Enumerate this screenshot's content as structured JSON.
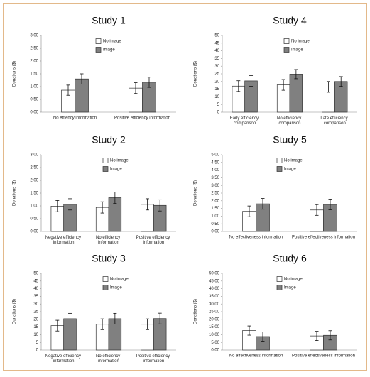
{
  "chart_data": [
    {
      "type": "bar",
      "title": "Study 1",
      "ylabel": "Donations ($)",
      "categories": [
        "No effiency information",
        "Positive efficiency information"
      ],
      "series": [
        {
          "name": "No image",
          "color": "#ffffff",
          "values": [
            0.86,
            0.94
          ],
          "errors": [
            0.2,
            0.21
          ]
        },
        {
          "name": "Image",
          "color": "#808080",
          "values": [
            1.3,
            1.17
          ],
          "errors": [
            0.2,
            0.2
          ]
        }
      ],
      "ylim": [
        0,
        3
      ],
      "yticks": [
        {
          "value": 0,
          "label": "0.00"
        },
        {
          "value": 0.5,
          "label": "0.50"
        },
        {
          "value": 1,
          "label": "1.00"
        },
        {
          "value": 1.5,
          "label": "1.50"
        },
        {
          "value": 2,
          "label": "2.00"
        },
        {
          "value": 2.5,
          "label": "2.50"
        },
        {
          "value": 3,
          "label": "3.00"
        }
      ]
    },
    {
      "type": "bar",
      "title": "Study 4",
      "ylabel": "Donations ($)",
      "categories": [
        "Early efficiency comparison",
        "No efficiency comparison",
        "Late efficiency comparison"
      ],
      "series": [
        {
          "name": "No image",
          "color": "#ffffff",
          "values": [
            17,
            17.8,
            16.5
          ],
          "errors": [
            3.5,
            3.5,
            3.5
          ]
        },
        {
          "name": "Image",
          "color": "#808080",
          "values": [
            20.4,
            24.8,
            20
          ],
          "errors": [
            3.5,
            3,
            3.2
          ]
        }
      ],
      "ylim": [
        0,
        50
      ],
      "yticks": [
        0,
        5,
        10,
        15,
        20,
        25,
        30,
        35,
        40,
        45,
        50
      ]
    },
    {
      "type": "bar",
      "title": "Study 2",
      "ylabel": "Donations ($)",
      "categories": [
        "Negative efficiency information",
        "No efficiency information",
        "Positive efficiency information"
      ],
      "series": [
        {
          "name": "No image",
          "color": "#ffffff",
          "values": [
            0.99,
            0.94,
            1.06
          ],
          "errors": [
            0.22,
            0.22,
            0.22
          ]
        },
        {
          "name": "Image",
          "color": "#808080",
          "values": [
            1.06,
            1.32,
            1.02
          ],
          "errors": [
            0.22,
            0.22,
            0.22
          ]
        }
      ],
      "ylim": [
        0,
        3
      ],
      "yticks": [
        {
          "value": 0,
          "label": "0.00"
        },
        {
          "value": 0.5,
          "label": "0.50"
        },
        {
          "value": 1,
          "label": "1.00"
        },
        {
          "value": 1.5,
          "label": "1.50"
        },
        {
          "value": 2,
          "label": "2.00"
        },
        {
          "value": 2.5,
          "label": "2.50"
        },
        {
          "value": 3,
          "label": "3.00"
        }
      ]
    },
    {
      "type": "bar",
      "title": "Study 5",
      "ylabel": "Donations ($)",
      "categories": [
        "No effectiveness information",
        "Positive effectiveness information"
      ],
      "series": [
        {
          "name": "No image",
          "color": "#ffffff",
          "values": [
            1.31,
            1.4
          ],
          "errors": [
            0.35,
            0.35
          ]
        },
        {
          "name": "Image",
          "color": "#808080",
          "values": [
            1.8,
            1.76
          ],
          "errors": [
            0.35,
            0.35
          ]
        }
      ],
      "ylim": [
        0,
        5
      ],
      "yticks": [
        {
          "value": 0,
          "label": "0.00"
        },
        {
          "value": 0.5,
          "label": "0.50"
        },
        {
          "value": 1,
          "label": "1.00"
        },
        {
          "value": 1.5,
          "label": "1.50"
        },
        {
          "value": 2,
          "label": "2.00"
        },
        {
          "value": 2.5,
          "label": "2.50"
        },
        {
          "value": 3,
          "label": "3.00"
        },
        {
          "value": 3.5,
          "label": "3.50"
        },
        {
          "value": 4,
          "label": "4.00"
        },
        {
          "value": 4.5,
          "label": "4.50"
        },
        {
          "value": 5,
          "label": "5.00"
        }
      ]
    },
    {
      "type": "bar",
      "title": "Study 3",
      "ylabel": "Donations ($)",
      "categories": [
        "Negative efficiency information",
        "No efficiency information",
        "Positive efficiency information"
      ],
      "series": [
        {
          "name": "No image",
          "color": "#ffffff",
          "values": [
            15.9,
            16.8,
            16.8
          ],
          "errors": [
            3.5,
            3.5,
            3.5
          ]
        },
        {
          "name": "Image",
          "color": "#808080",
          "values": [
            20.4,
            20.4,
            20.5
          ],
          "errors": [
            3.5,
            3.5,
            3.5
          ]
        }
      ],
      "ylim": [
        0,
        50
      ],
      "yticks": [
        0,
        5,
        10,
        15,
        20,
        25,
        30,
        35,
        40,
        45,
        50
      ]
    },
    {
      "type": "bar",
      "title": "Study 6",
      "ylabel": "Donations ($)",
      "categories": [
        "No effectiveness information",
        "Positive effectiveness information"
      ],
      "series": [
        {
          "name": "No image",
          "color": "#ffffff",
          "values": [
            12.7,
            9.2
          ],
          "errors": [
            3,
            3
          ]
        },
        {
          "name": "Image",
          "color": "#808080",
          "values": [
            8.8,
            9.6
          ],
          "errors": [
            3,
            3
          ]
        }
      ],
      "ylim": [
        0,
        50
      ],
      "yticks": [
        {
          "value": 0,
          "label": "0.00"
        },
        {
          "value": 5,
          "label": "5.00"
        },
        {
          "value": 10,
          "label": "10.00"
        },
        {
          "value": 15,
          "label": "15.00"
        },
        {
          "value": 20,
          "label": "20.00"
        },
        {
          "value": 25,
          "label": "25.00"
        },
        {
          "value": 30,
          "label": "30.00"
        },
        {
          "value": 35,
          "label": "35.00"
        },
        {
          "value": 40,
          "label": "40.00"
        },
        {
          "value": 45,
          "label": "45.00"
        },
        {
          "value": 50,
          "label": "50.00"
        }
      ]
    }
  ]
}
